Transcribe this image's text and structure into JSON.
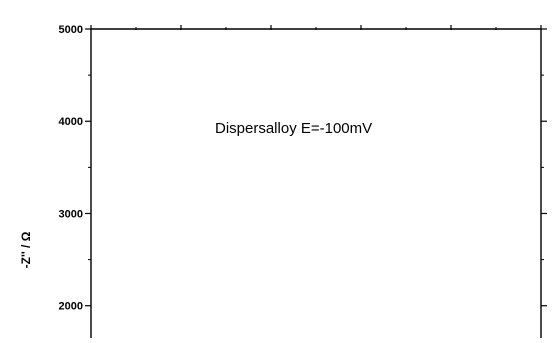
{
  "chart_data": {
    "type": "line",
    "title": "",
    "annotation": "Dispersalloy E=-100mV",
    "xlabel": "",
    "ylabel": "-Z'' / Ω",
    "yticks": [
      2000,
      3000,
      4000,
      5000
    ],
    "ytick_labels": [
      "2000",
      "3000",
      "4000",
      "5000"
    ],
    "ylim_visible": [
      1650,
      5000
    ],
    "series": [],
    "grid": false
  }
}
